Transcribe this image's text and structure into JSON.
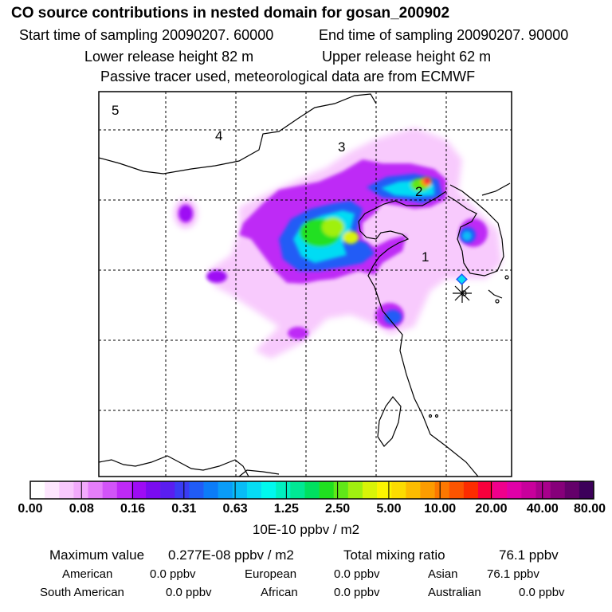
{
  "header": {
    "title": "CO  source contributions in nested domain for gosan_200902",
    "start_label": "Start time of sampling 20090207. 60000",
    "end_label": "End time of sampling 20090207. 90000",
    "lower_label": "Lower release height   82 m",
    "upper_label": "Upper release height   62 m",
    "tracer_label": "Passive tracer used, meteorological data are from ECMWF"
  },
  "chart_data": {
    "type": "heatmap",
    "title": "CO  source contributions in nested domain for gosan_200902",
    "zone_labels": [
      "1",
      "2",
      "3",
      "4",
      "5"
    ],
    "colorbar": {
      "labels": [
        "0.00",
        "0.08",
        "0.16",
        "0.31",
        "0.63",
        "1.25",
        "2.50",
        "5.00",
        "10.00",
        "20.00",
        "40.00",
        "80.00"
      ],
      "units": "10E-10 ppbv / m2",
      "colors": [
        "#ffffff",
        "#fde6fe",
        "#f8c8fd",
        "#f2aafc",
        "#e47efa",
        "#d254f8",
        "#be2af6",
        "#9e0cf4",
        "#7a0cf0",
        "#5a1ef0",
        "#3a3cf4",
        "#205cf6",
        "#0c7cf8",
        "#0a9cf8",
        "#08bcf6",
        "#06dcf4",
        "#00f8ee",
        "#00f0c0",
        "#00e894",
        "#00e060",
        "#20e020",
        "#60e818",
        "#a0f010",
        "#d8f408",
        "#fcf400",
        "#fcdc00",
        "#fcbc00",
        "#fc9c00",
        "#fc7800",
        "#fc5400",
        "#fc2c00",
        "#f8003c",
        "#f0008c",
        "#e000a8",
        "#c8009c",
        "#a8008c",
        "#86007a",
        "#64006a",
        "#3c005a"
      ]
    },
    "statistics": {
      "maximum_label": "Maximum value",
      "maximum_value": "0.277E-08 ppbv / m2",
      "total_label": "Total mixing ratio",
      "total_value": "76.1 ppbv"
    },
    "source_regions": [
      {
        "name": "American",
        "value": "0.0 ppbv"
      },
      {
        "name": "European",
        "value": "0.0 ppbv"
      },
      {
        "name": "Asian",
        "value": "76.1 ppbv"
      },
      {
        "name": "South American",
        "value": "0.0 ppbv"
      },
      {
        "name": "African",
        "value": "0.0 ppbv"
      },
      {
        "name": "Australian",
        "value": "0.0 ppbv"
      }
    ]
  }
}
